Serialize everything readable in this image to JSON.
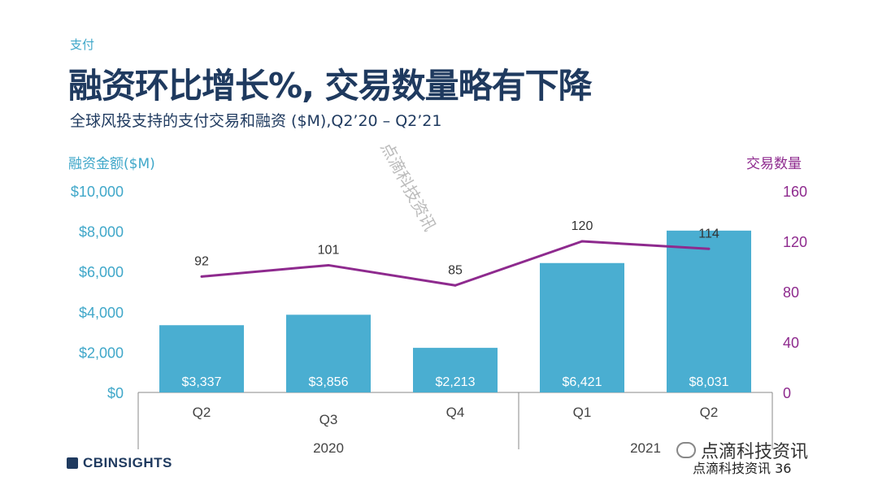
{
  "header": {
    "category": "支付",
    "title": "融资环比增长%, 交易数量略有下降",
    "subtitle": "全球风投支持的支付交易和融资 ($M),Q2’20 – Q2’21"
  },
  "branding": {
    "logo_text": "CBINSIGHTS",
    "footer_text": "点滴科技资讯 36",
    "wechat_badge": "点滴科技资讯",
    "watermark": "点滴科技资讯"
  },
  "colors": {
    "bar": "#4aaed1",
    "line": "#8e2a8e",
    "left_axis": "#3fa7c9",
    "right_axis": "#8e2a8e",
    "title": "#1f3a5f"
  },
  "chart_data": {
    "type": "bar",
    "categories": [
      "Q2",
      "Q3",
      "Q4",
      "Q1",
      "Q2"
    ],
    "year_groups": [
      {
        "label": "2020",
        "span": [
          0,
          2
        ]
      },
      {
        "label": "2021",
        "span": [
          3,
          4
        ]
      }
    ],
    "left_axis": {
      "label": "融资金额($M)",
      "ticks": [
        "$0",
        "$2,000",
        "$4,000",
        "$6,000",
        "$8,000",
        "$10,000"
      ],
      "ylim": [
        0,
        10000
      ]
    },
    "right_axis": {
      "label": "交易数量",
      "ticks": [
        "0",
        "40",
        "80",
        "120",
        "160"
      ],
      "ylim": [
        0,
        160
      ]
    },
    "series": [
      {
        "type": "bar",
        "axis": "left",
        "values": [
          3337,
          3856,
          2213,
          6421,
          8031
        ],
        "labels": [
          "$3,337",
          "$3,856",
          "$2,213",
          "$6,421",
          "$8,031"
        ]
      },
      {
        "type": "line",
        "axis": "right",
        "values": [
          92,
          101,
          85,
          120,
          114
        ],
        "labels": [
          "92",
          "101",
          "85",
          "120",
          "114"
        ]
      }
    ]
  }
}
